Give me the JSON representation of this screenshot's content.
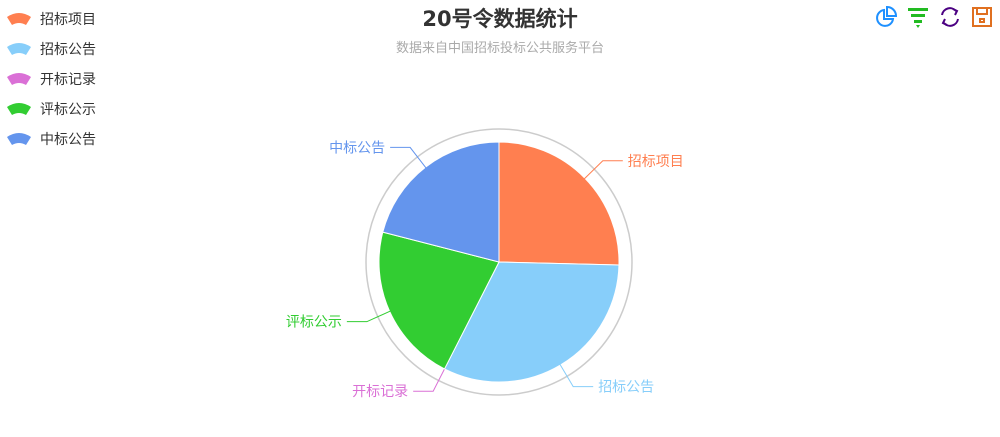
{
  "chart_data": {
    "type": "pie",
    "title": "20号令数据统计",
    "subtitle": "数据来自中国招标投标公共服务平台",
    "legend_placement": "top-left",
    "slices": [
      {
        "name": "招标项目",
        "value": 25.4,
        "color": "#ff7f50"
      },
      {
        "name": "招标公告",
        "value": 32.1,
        "color": "#87cefa"
      },
      {
        "name": "开标记录",
        "value": 0,
        "color": "#da70d6"
      },
      {
        "name": "评标公示",
        "value": 21.5,
        "color": "#32cd32"
      },
      {
        "name": "中标公告",
        "value": 21.0,
        "color": "#6495ed"
      }
    ]
  },
  "toolbox": [
    {
      "icon": "pie-chart-icon",
      "color": "#1e90ff"
    },
    {
      "icon": "funnel-icon",
      "color": "#22bb22"
    },
    {
      "icon": "refresh-icon",
      "color": "#4b0082"
    },
    {
      "icon": "save-icon",
      "color": "#e07020"
    }
  ]
}
